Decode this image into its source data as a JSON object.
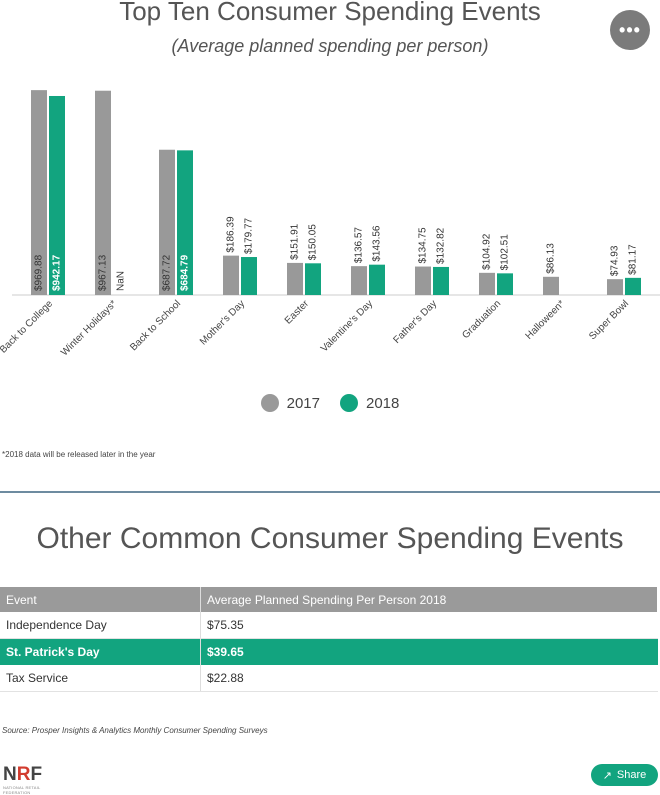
{
  "chart_data": {
    "type": "bar",
    "title": "Top Ten Consumer Spending Events",
    "subtitle": "(Average planned spending per person)",
    "categories": [
      "Back to College",
      "Winter Holidays*",
      "Back to School",
      "Mother's Day",
      "Easter",
      "Valentine's Day",
      "Father's Day",
      "Graduation",
      "Halloween*",
      "Super Bowl"
    ],
    "series": [
      {
        "name": "2017",
        "color": "#999999",
        "values": [
          969.88,
          967.13,
          687.72,
          186.39,
          151.91,
          136.57,
          134.75,
          104.92,
          86.13,
          74.93
        ],
        "labels": [
          "$969.88",
          "$967.13",
          "$687.72",
          "$186.39",
          "$151.91",
          "$136.57",
          "$134.75",
          "$104.92",
          "$86.13",
          "$74.93"
        ]
      },
      {
        "name": "2018",
        "color": "#12a47f",
        "values": [
          942.17,
          null,
          684.79,
          179.77,
          150.05,
          143.56,
          132.82,
          102.51,
          null,
          81.17
        ],
        "labels": [
          "$942.17",
          "NaN",
          "$684.79",
          "$179.77",
          "$150.05",
          "$143.56",
          "$132.82",
          "$102.51",
          "",
          "$81.17"
        ]
      }
    ],
    "ylim": [
      0,
      980
    ],
    "grid": false,
    "legend": "bottom-center"
  },
  "footnote": "*2018 data will be released later in the year",
  "menu_glyph": "•••",
  "section_title": "Other Common Consumer Spending Events",
  "table": {
    "headers": [
      "Event",
      "Average Planned Spending Per Person 2018"
    ],
    "rows": [
      {
        "event": "Independence Day",
        "value": "$75.35"
      },
      {
        "event": "St. Patrick's Day",
        "value": "$39.65"
      },
      {
        "event": "Tax Service",
        "value": "$22.88"
      }
    ],
    "highlight_color": "#12a47f"
  },
  "source": "Source: Prosper Insights & Analytics Monthly Consumer Spending Surveys",
  "logo": {
    "prefix": "N",
    "accent": "R",
    "suffix": "F",
    "tagline": "NATIONAL RETAIL FEDERATION"
  },
  "share": {
    "label": "Share",
    "icon": "share-icon"
  }
}
